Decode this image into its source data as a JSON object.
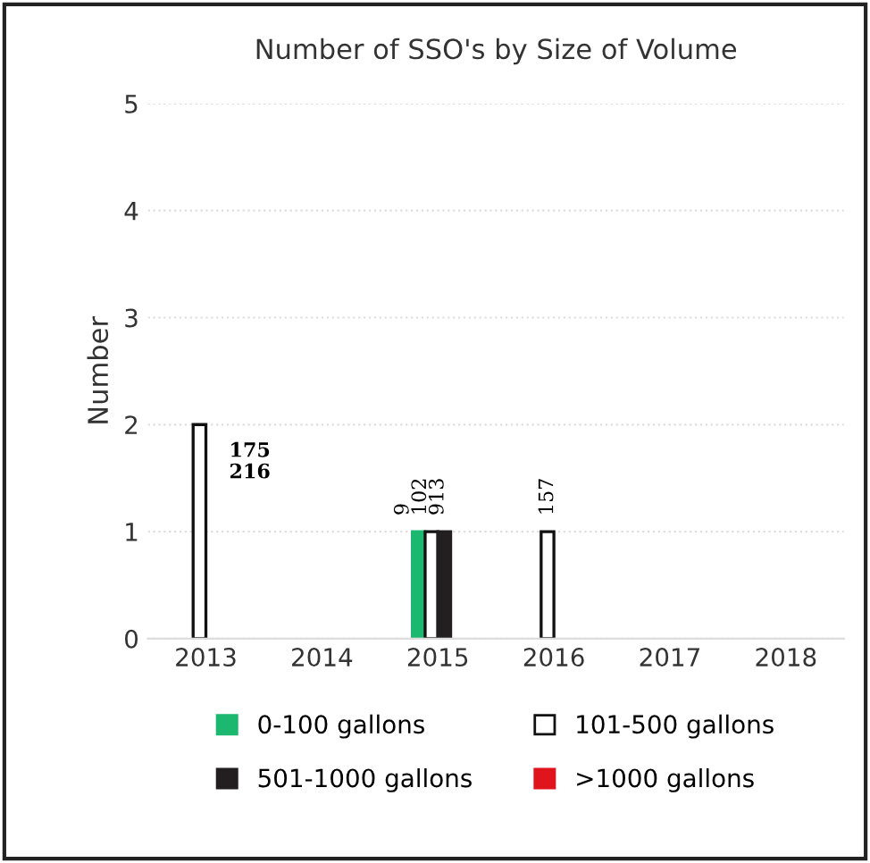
{
  "chart_data": {
    "type": "bar",
    "title": "Number of SSO's by Size of Volume",
    "ylabel": "Number",
    "categories": [
      "2013",
      "2014",
      "2015",
      "2016",
      "2017",
      "2018"
    ],
    "series": [
      {
        "name": "0-100 gallons",
        "color": "#1db870",
        "values": [
          null,
          null,
          1,
          null,
          null,
          null
        ]
      },
      {
        "name": "101-500 gallons",
        "color": "#ffffff",
        "values": [
          2,
          null,
          1,
          1,
          null,
          null
        ]
      },
      {
        "name": "501-1000 gallons",
        "color": "#231f20",
        "values": [
          null,
          null,
          1,
          null,
          null,
          null
        ]
      },
      {
        "name": ">1000 gallons",
        "color": "#e0141c",
        "values": [
          null,
          null,
          null,
          null,
          null,
          null
        ]
      }
    ],
    "annotations": [
      {
        "text": "175",
        "x": "2013",
        "y": 1.75
      },
      {
        "text": "216",
        "x": "2013",
        "y": 1.55
      },
      {
        "text": "9",
        "x": "2015",
        "y": 1
      },
      {
        "text": "102",
        "x": "2015",
        "y": 1
      },
      {
        "text": "913",
        "x": "2015",
        "y": 1
      },
      {
        "text": "157",
        "x": "2016",
        "y": 1
      }
    ],
    "ylim": [
      0,
      5
    ],
    "yticks": [
      0,
      1,
      2,
      3,
      4,
      5
    ],
    "grid": "y",
    "legend": "bottom"
  }
}
